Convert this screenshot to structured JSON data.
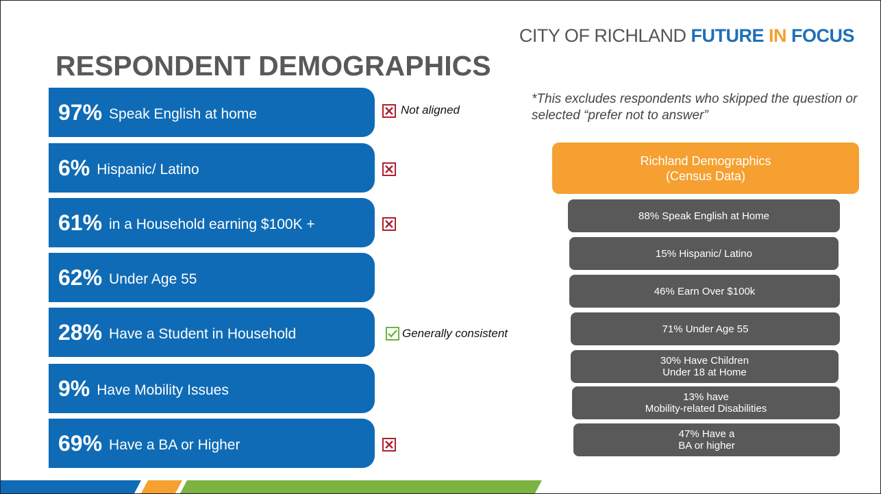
{
  "header": {
    "brand": [
      "CITY OF RICHLAND",
      "FUTURE",
      "IN",
      "FOCUS"
    ],
    "title": "RESPONDENT DEMOGRAPHICS"
  },
  "rows": [
    {
      "percent": "97%",
      "text": "Speak English at home",
      "status": "Not aligned"
    },
    {
      "percent": "6%",
      "text": "Hispanic/ Latino"
    },
    {
      "percent": "61%",
      "text": "in a Household earning $100K +"
    },
    {
      "percent": "62%",
      "text": "Under Age 55"
    },
    {
      "percent": "28%",
      "text": "Have a Student in Household",
      "status": "Generally consistent"
    },
    {
      "percent": "9%",
      "text": "Have Mobility Issues"
    },
    {
      "percent": "69%",
      "text": "Have a BA or Higher"
    }
  ],
  "note": "*This excludes respondents who skipped the question or selected “prefer not to answer”",
  "census": {
    "heading": [
      "Richland Demographics",
      "(Census Data)"
    ],
    "items": [
      [
        "88% Speak English at Home"
      ],
      [
        "15% Hispanic/ Latino"
      ],
      [
        "46% Earn Over $100k"
      ],
      [
        "71% Under Age 55"
      ],
      [
        "30% Have Children",
        "Under 18 at Home"
      ],
      [
        "13% have",
        "Mobility-related Disabilities"
      ],
      [
        "47% Have a",
        "BA or higher"
      ]
    ]
  }
}
